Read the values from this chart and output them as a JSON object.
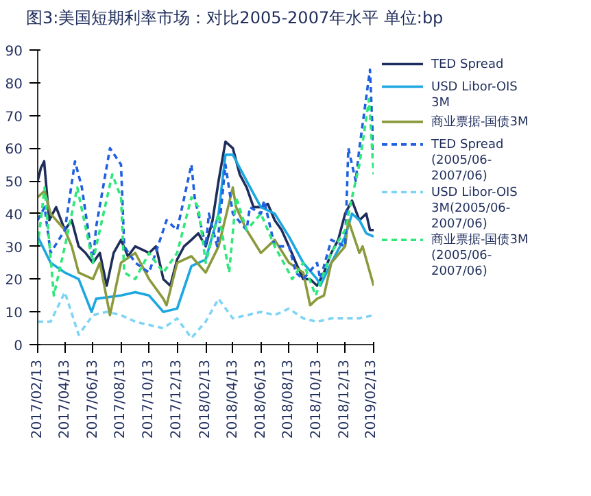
{
  "chart_data": {
    "type": "line",
    "title": "图3:美国短期利率市场：对比2005-2007年水平  单位:bp",
    "xlim": [
      "2017-02-13",
      "2019-02-13"
    ],
    "xticks": [
      {
        "value": "2017-02-13",
        "label": "2017/02/13"
      },
      {
        "value": "2017-04-13",
        "label": "2017/04/13"
      },
      {
        "value": "2017-06-13",
        "label": "2017/06/13"
      },
      {
        "value": "2017-08-13",
        "label": "2017/08/13"
      },
      {
        "value": "2017-10-13",
        "label": "2017/10/13"
      },
      {
        "value": "2017-12-13",
        "label": "2017/12/13"
      },
      {
        "value": "2018-02-13",
        "label": "2018/02/13"
      },
      {
        "value": "2018-04-13",
        "label": "2018/04/13"
      },
      {
        "value": "2018-06-13",
        "label": "2018/06/13"
      },
      {
        "value": "2018-08-13",
        "label": "2018/08/13"
      },
      {
        "value": "2018-10-13",
        "label": "2018/10/13"
      },
      {
        "value": "2018-12-13",
        "label": "2018/12/13"
      },
      {
        "value": "2019-02-13",
        "label": "2019/02/13"
      }
    ],
    "ylim": [
      0,
      90
    ],
    "yticks": [
      0,
      10,
      20,
      30,
      40,
      50,
      60,
      70,
      80,
      90
    ],
    "grid": false,
    "legend": "right",
    "series": [
      {
        "name": "TED Spread",
        "color": "#1f2d5c",
        "line_style": "solid",
        "x": [
          "2017-02-13",
          "2017-02-20",
          "2017-02-27",
          "2017-03-10",
          "2017-03-25",
          "2017-04-13",
          "2017-04-28",
          "2017-05-13",
          "2017-05-28",
          "2017-06-13",
          "2017-06-28",
          "2017-07-13",
          "2017-07-28",
          "2017-08-13",
          "2017-08-28",
          "2017-09-13",
          "2017-09-28",
          "2017-10-13",
          "2017-10-28",
          "2017-11-13",
          "2017-11-28",
          "2017-12-13",
          "2017-12-28",
          "2018-01-13",
          "2018-01-28",
          "2018-02-13",
          "2018-02-28",
          "2018-03-13",
          "2018-03-28",
          "2018-04-13",
          "2018-04-28",
          "2018-05-13",
          "2018-05-28",
          "2018-06-13",
          "2018-06-28",
          "2018-07-13",
          "2018-07-28",
          "2018-08-13",
          "2018-08-28",
          "2018-09-13",
          "2018-09-28",
          "2018-10-13",
          "2018-10-28",
          "2018-11-13",
          "2018-11-28",
          "2018-12-13",
          "2018-12-28",
          "2019-01-13",
          "2019-01-28",
          "2019-02-05",
          "2019-02-13"
        ],
        "values": [
          50,
          54,
          56,
          38,
          42,
          35,
          38,
          30,
          28,
          25,
          28,
          18,
          28,
          32,
          27,
          30,
          29,
          28,
          30,
          20,
          18,
          26,
          30,
          32,
          34,
          30,
          38,
          50,
          62,
          60,
          52,
          48,
          42,
          42,
          43,
          38,
          35,
          30,
          25,
          20,
          20,
          18,
          22,
          28,
          32,
          40,
          44,
          38,
          40,
          35,
          35
        ]
      },
      {
        "name": "USD Libor-OIS 3M",
        "color": "#1ba7e0",
        "line_style": "solid",
        "x": [
          "2017-02-13",
          "2017-03-13",
          "2017-04-13",
          "2017-05-13",
          "2017-06-10",
          "2017-06-20",
          "2017-08-13",
          "2017-09-13",
          "2017-10-13",
          "2017-11-13",
          "2017-12-13",
          "2018-01-13",
          "2018-02-13",
          "2018-03-13",
          "2018-03-28",
          "2018-04-13",
          "2018-05-13",
          "2018-06-13",
          "2018-07-13",
          "2018-08-13",
          "2018-09-13",
          "2018-10-13",
          "2018-10-20",
          "2018-11-13",
          "2018-12-13",
          "2018-12-28",
          "2019-01-13",
          "2019-01-28",
          "2019-02-13"
        ],
        "values": [
          33,
          25,
          22,
          20,
          10,
          14,
          15,
          16,
          15,
          10,
          11,
          24,
          26,
          40,
          58,
          58,
          50,
          42,
          40,
          33,
          25,
          20,
          18,
          25,
          33,
          40,
          38,
          34,
          33
        ]
      },
      {
        "name": "商业票据-国债3M",
        "color": "#8a9a3c",
        "line_style": "solid",
        "x": [
          "2017-02-13",
          "2017-02-28",
          "2017-03-13",
          "2017-04-13",
          "2017-04-28",
          "2017-05-13",
          "2017-06-13",
          "2017-06-28",
          "2017-07-20",
          "2017-08-13",
          "2017-09-13",
          "2017-10-13",
          "2017-11-13",
          "2017-11-20",
          "2017-12-13",
          "2018-01-13",
          "2018-02-13",
          "2018-03-13",
          "2018-04-13",
          "2018-04-20",
          "2018-05-13",
          "2018-06-13",
          "2018-07-13",
          "2018-08-13",
          "2018-09-13",
          "2018-09-28",
          "2018-10-13",
          "2018-10-28",
          "2018-11-13",
          "2018-12-13",
          "2018-12-20",
          "2019-01-13",
          "2019-01-20",
          "2019-02-13"
        ],
        "values": [
          45,
          47,
          40,
          35,
          30,
          22,
          20,
          25,
          9,
          25,
          28,
          20,
          14,
          12,
          25,
          27,
          22,
          30,
          48,
          42,
          35,
          28,
          32,
          25,
          22,
          12,
          14,
          15,
          25,
          30,
          38,
          28,
          30,
          18
        ]
      },
      {
        "name": "TED Spread(2005/06-2007/06)",
        "color": "#2060e0",
        "line_style": "dashed",
        "x": [
          "2017-02-13",
          "2017-02-28",
          "2017-03-13",
          "2017-04-13",
          "2017-05-05",
          "2017-05-20",
          "2017-06-13",
          "2017-06-20",
          "2017-07-20",
          "2017-08-13",
          "2017-08-20",
          "2017-09-13",
          "2017-10-13",
          "2017-11-13",
          "2017-11-20",
          "2017-12-13",
          "2018-01-13",
          "2018-01-20",
          "2018-02-13",
          "2018-02-20",
          "2018-03-10",
          "2018-03-28",
          "2018-04-13",
          "2018-05-13",
          "2018-05-20",
          "2018-06-13",
          "2018-06-20",
          "2018-07-13",
          "2018-08-13",
          "2018-08-28",
          "2018-09-13",
          "2018-10-13",
          "2018-10-20",
          "2018-11-13",
          "2018-12-13",
          "2018-12-20",
          "2019-01-05",
          "2019-01-13",
          "2019-02-05",
          "2019-02-13"
        ],
        "values": [
          38,
          42,
          28,
          35,
          56,
          48,
          25,
          36,
          60,
          55,
          30,
          25,
          22,
          35,
          38,
          35,
          55,
          45,
          30,
          40,
          30,
          55,
          40,
          35,
          42,
          40,
          44,
          30,
          30,
          22,
          20,
          25,
          20,
          32,
          30,
          60,
          50,
          60,
          84,
          57
        ]
      },
      {
        "name": "USD Libor-OIS 3M(2005/06-2007/06)",
        "color": "#7fd4f5",
        "line_style": "dashed",
        "x": [
          "2017-02-13",
          "2017-03-13",
          "2017-04-13",
          "2017-05-13",
          "2017-06-13",
          "2017-07-13",
          "2017-08-13",
          "2017-09-13",
          "2017-10-13",
          "2017-11-13",
          "2017-12-13",
          "2018-01-13",
          "2018-02-13",
          "2018-03-13",
          "2018-04-13",
          "2018-05-13",
          "2018-06-13",
          "2018-07-13",
          "2018-08-13",
          "2018-09-13",
          "2018-10-13",
          "2018-11-13",
          "2018-12-13",
          "2019-01-13",
          "2019-02-13"
        ],
        "values": [
          7,
          7,
          16,
          3,
          9,
          10,
          9,
          7,
          6,
          5,
          8,
          2,
          7,
          14,
          8,
          9,
          10,
          9,
          11,
          8,
          7,
          8,
          8,
          8,
          9
        ]
      },
      {
        "name": "商业票据-国债3M(2005/06-2007/06)",
        "color": "#2ee87a",
        "line_style": "dashed",
        "x": [
          "2017-02-13",
          "2017-02-28",
          "2017-03-20",
          "2017-04-13",
          "2017-05-10",
          "2017-06-13",
          "2017-06-20",
          "2017-07-25",
          "2017-08-13",
          "2017-08-20",
          "2017-09-13",
          "2017-10-13",
          "2017-11-13",
          "2017-12-13",
          "2018-01-13",
          "2018-01-28",
          "2018-02-13",
          "2018-03-13",
          "2018-04-05",
          "2018-04-20",
          "2018-05-13",
          "2018-06-13",
          "2018-07-13",
          "2018-08-13",
          "2018-08-20",
          "2018-09-13",
          "2018-10-10",
          "2018-10-28",
          "2018-11-13",
          "2018-12-13",
          "2018-12-28",
          "2019-01-13",
          "2019-02-03",
          "2019-02-13"
        ],
        "values": [
          30,
          48,
          15,
          30,
          48,
          25,
          30,
          52,
          45,
          22,
          20,
          28,
          22,
          28,
          45,
          42,
          25,
          40,
          22,
          45,
          35,
          40,
          30,
          22,
          20,
          25,
          15,
          22,
          28,
          35,
          45,
          55,
          75,
          52
        ]
      }
    ]
  }
}
